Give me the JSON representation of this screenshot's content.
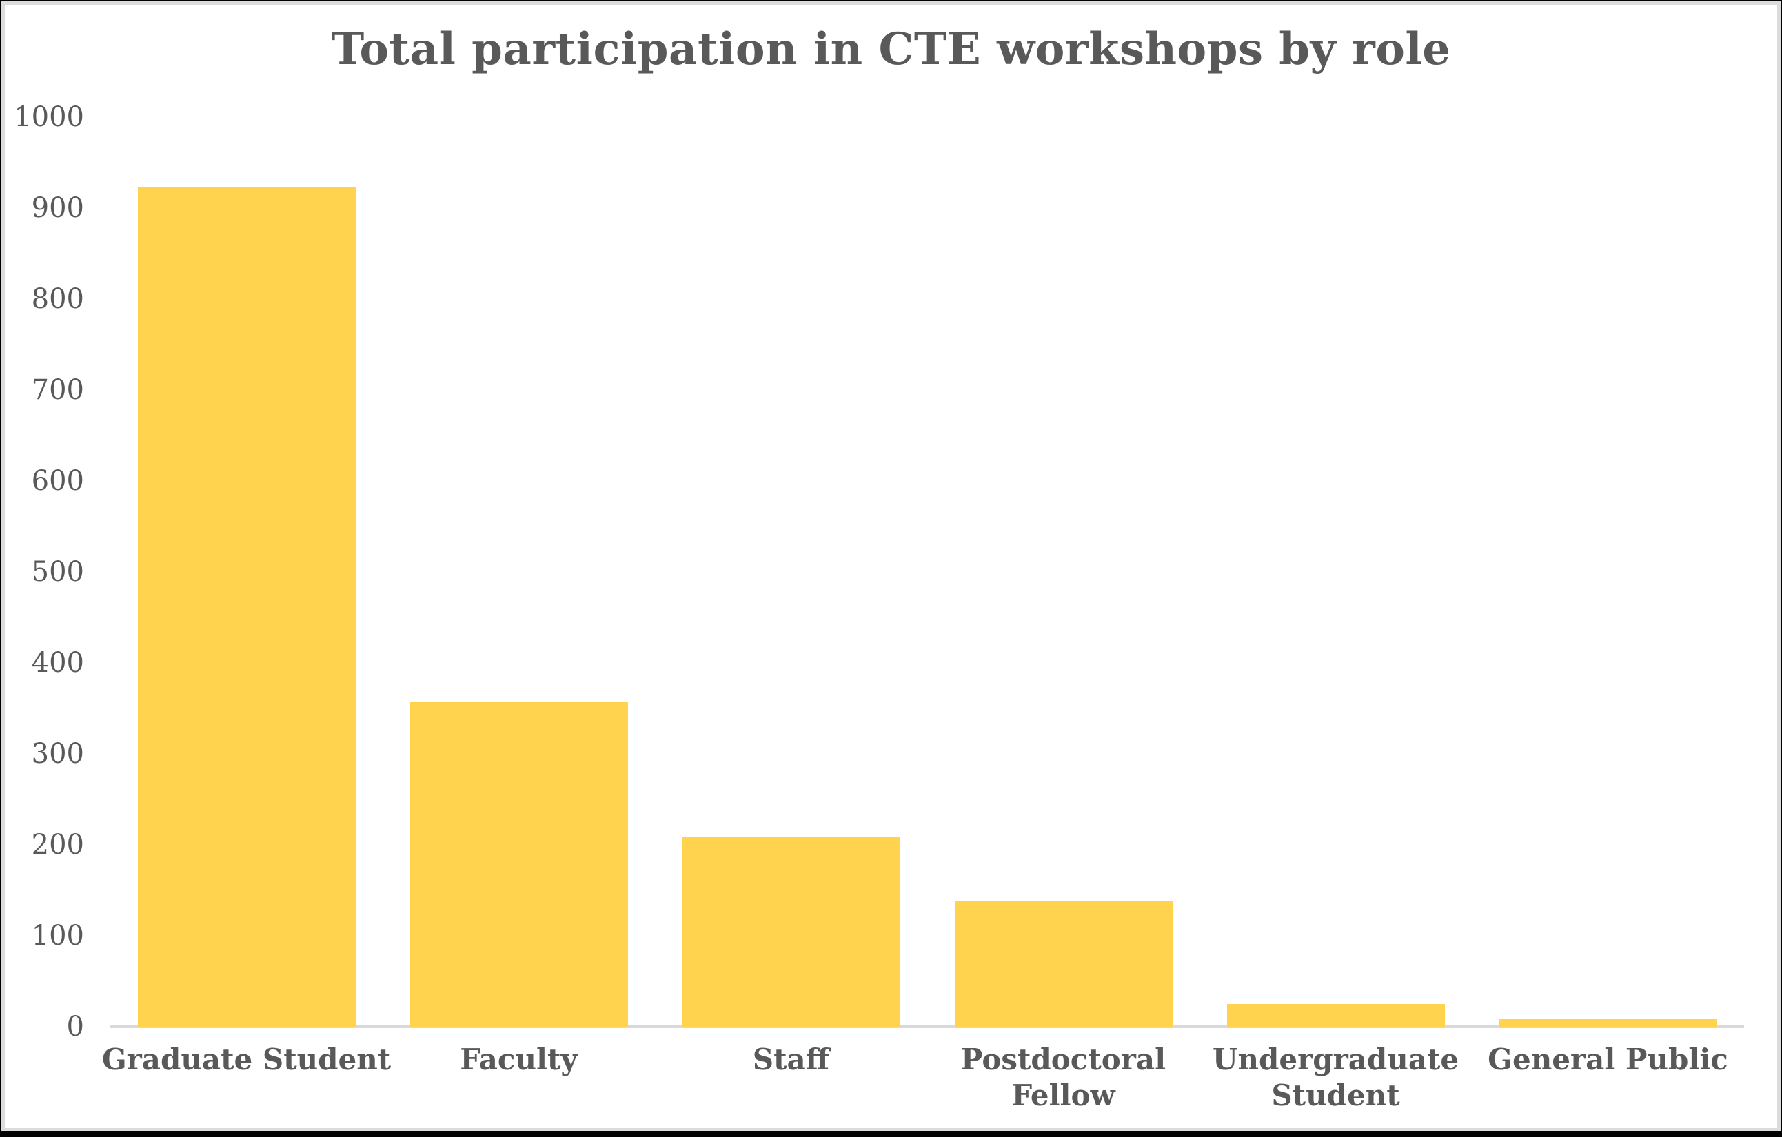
{
  "chart_data": {
    "type": "bar",
    "title": "Total participation in CTE workshops by role",
    "categories": [
      "Graduate Student",
      "Faculty",
      "Staff",
      "Postdoctoral Fellow",
      "Undergraduate Student",
      "General Public"
    ],
    "values": [
      923,
      357,
      208,
      139,
      25,
      8
    ],
    "category_label_lines": [
      [
        "Graduate Student"
      ],
      [
        "Faculty"
      ],
      [
        "Staff"
      ],
      [
        "Postdoctoral",
        "Fellow"
      ],
      [
        "Undergraduate",
        "Student"
      ],
      [
        "General Public"
      ]
    ],
    "xlabel": "",
    "ylabel": "",
    "ylim": [
      0,
      1000
    ],
    "yticks": [
      0,
      100,
      200,
      300,
      400,
      500,
      600,
      700,
      800,
      900,
      1000
    ],
    "grid": false,
    "legend": false,
    "bar_color": "#FFD34D",
    "axis_line_color": "#D9D9D9",
    "text_color": "#595959",
    "background_color": "#FFFFFF",
    "frame_color": "#000000"
  }
}
